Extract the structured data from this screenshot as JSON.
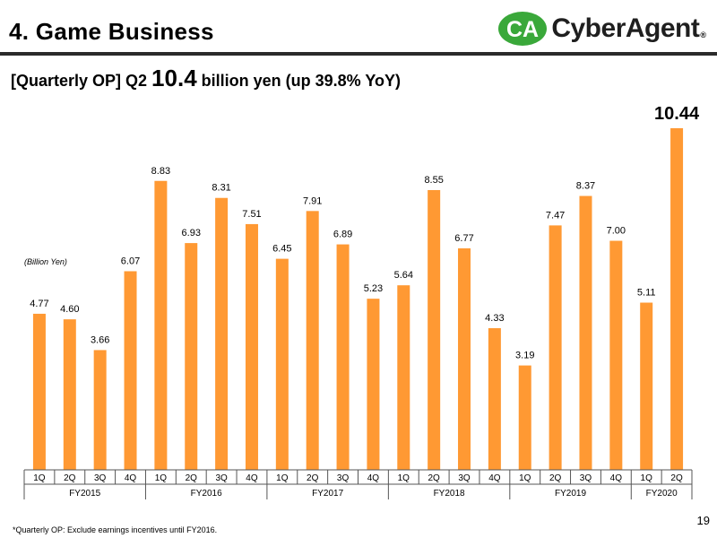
{
  "header": {
    "title": "4. Game Business",
    "subtitle_prefix": "[Quarterly OP]  Q2 ",
    "subtitle_value": "10.4",
    "subtitle_suffix": " billion yen (up 39.8% YoY)"
  },
  "logo": {
    "text": "CyberAgent",
    "reg": "®",
    "mark_text": "CA"
  },
  "colors": {
    "bar": "#FF9933",
    "rule": "#2b2b2b",
    "logo_green": "#3aa83a"
  },
  "chart_data": {
    "type": "bar",
    "unit_label": "(Billion Yen)",
    "categories": [
      "1Q",
      "2Q",
      "3Q",
      "4Q",
      "1Q",
      "2Q",
      "3Q",
      "4Q",
      "1Q",
      "2Q",
      "3Q",
      "4Q",
      "1Q",
      "2Q",
      "3Q",
      "4Q",
      "1Q",
      "2Q",
      "3Q",
      "4Q",
      "1Q",
      "2Q"
    ],
    "values": [
      4.77,
      4.6,
      3.66,
      6.07,
      8.83,
      6.93,
      8.31,
      7.51,
      6.45,
      7.91,
      6.89,
      5.23,
      5.64,
      8.55,
      6.77,
      4.33,
      3.19,
      7.47,
      8.37,
      7.0,
      5.11,
      10.44
    ],
    "value_labels": [
      "4.77",
      "4.60",
      "3.66",
      "6.07",
      "8.83",
      "6.93",
      "8.31",
      "7.51",
      "6.45",
      "7.91",
      "6.89",
      "5.23",
      "5.64",
      "8.55",
      "6.77",
      "4.33",
      "3.19",
      "7.47",
      "8.37",
      "7.00",
      "5.11",
      "10.44"
    ],
    "highlight_index": 21,
    "groups": [
      {
        "label": "FY2015",
        "start": 0,
        "end": 3
      },
      {
        "label": "FY2016",
        "start": 4,
        "end": 7
      },
      {
        "label": "FY2017",
        "start": 8,
        "end": 11
      },
      {
        "label": "FY2018",
        "start": 12,
        "end": 15
      },
      {
        "label": "FY2019",
        "start": 16,
        "end": 19
      },
      {
        "label": "FY2020",
        "start": 20,
        "end": 21
      }
    ],
    "ylim": [
      0,
      10.44
    ]
  },
  "footer": {
    "note": "*Quarterly OP: Exclude earnings incentives until FY2016.",
    "page": "19"
  }
}
